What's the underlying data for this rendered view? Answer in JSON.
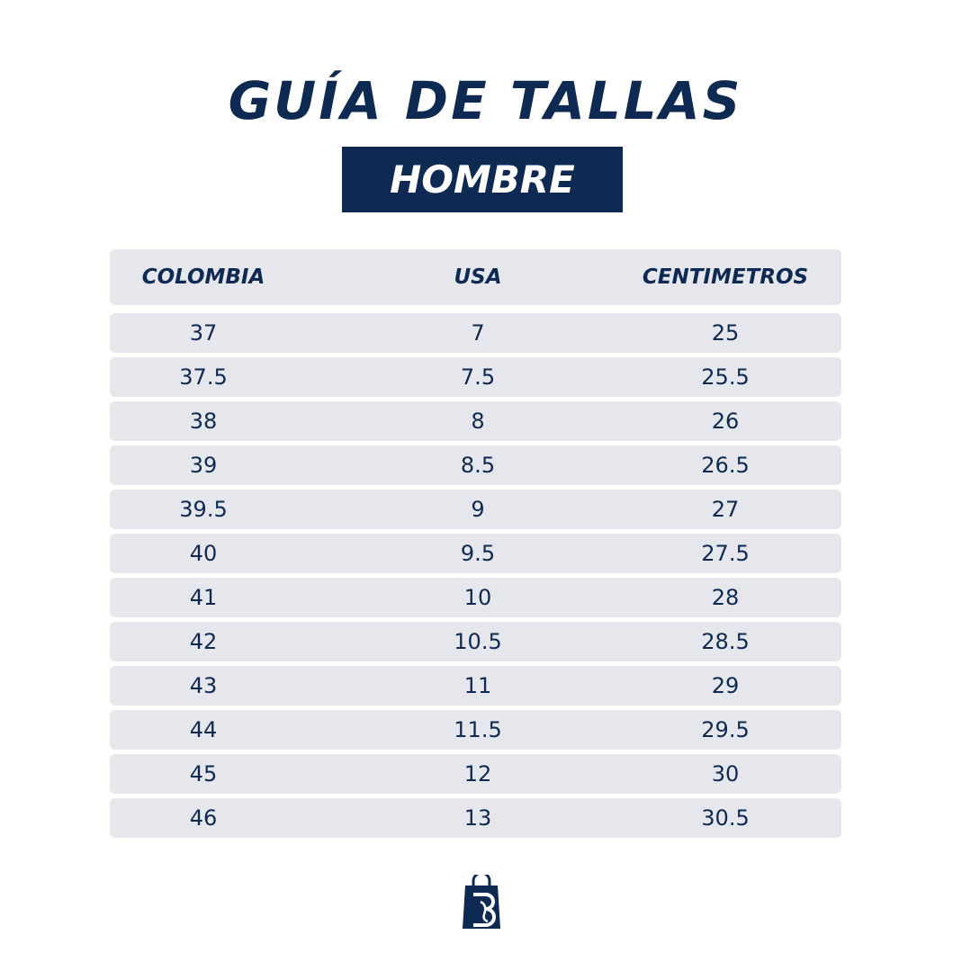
{
  "header": {
    "title": "GUÍA DE TALLAS",
    "subtitle": "HOMBRE"
  },
  "table": {
    "columns": [
      "COLOMBIA",
      "USA",
      "CENTIMETROS"
    ],
    "rows": [
      [
        "37",
        "7",
        "25"
      ],
      [
        "37.5",
        "7.5",
        "25.5"
      ],
      [
        "38",
        "8",
        "26"
      ],
      [
        "39",
        "8.5",
        "26.5"
      ],
      [
        "39.5",
        "9",
        "27"
      ],
      [
        "40",
        "9.5",
        "27.5"
      ],
      [
        "41",
        "10",
        "28"
      ],
      [
        "42",
        "10.5",
        "28.5"
      ],
      [
        "43",
        "11",
        "29"
      ],
      [
        "44",
        "11.5",
        "29.5"
      ],
      [
        "45",
        "12",
        "30"
      ],
      [
        "46",
        "13",
        "30.5"
      ]
    ]
  }
}
